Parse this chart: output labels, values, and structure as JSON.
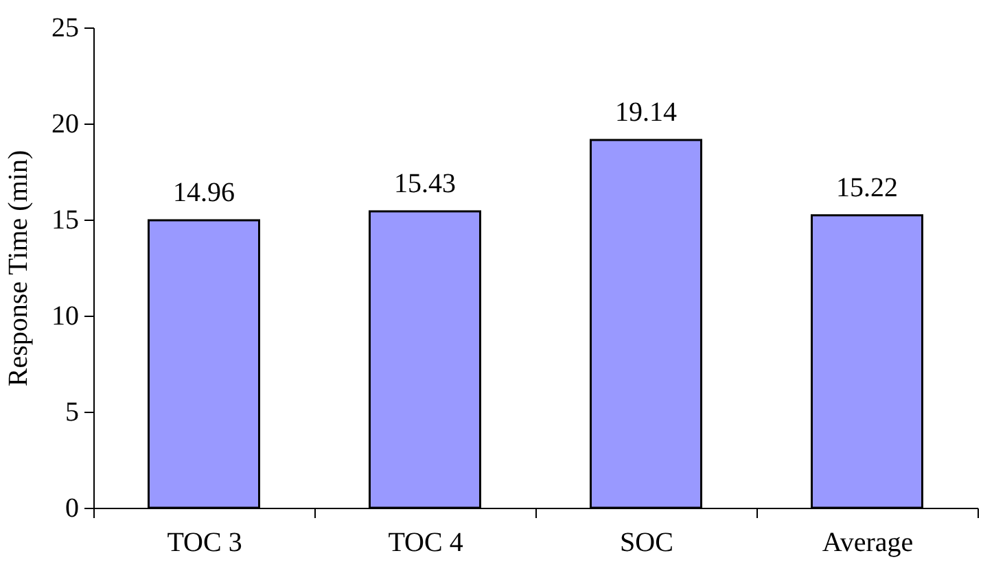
{
  "chart_data": {
    "type": "bar",
    "ylabel": "Response Time (min)",
    "categories": [
      "TOC 3",
      "TOC 4",
      "SOC",
      "Average"
    ],
    "values": [
      14.96,
      15.43,
      19.14,
      15.22
    ],
    "color": "#9999ff",
    "ylim": [
      0,
      25
    ],
    "yticks": [
      0,
      5,
      10,
      15,
      20,
      25
    ],
    "grid": false,
    "data_labels": true
  }
}
